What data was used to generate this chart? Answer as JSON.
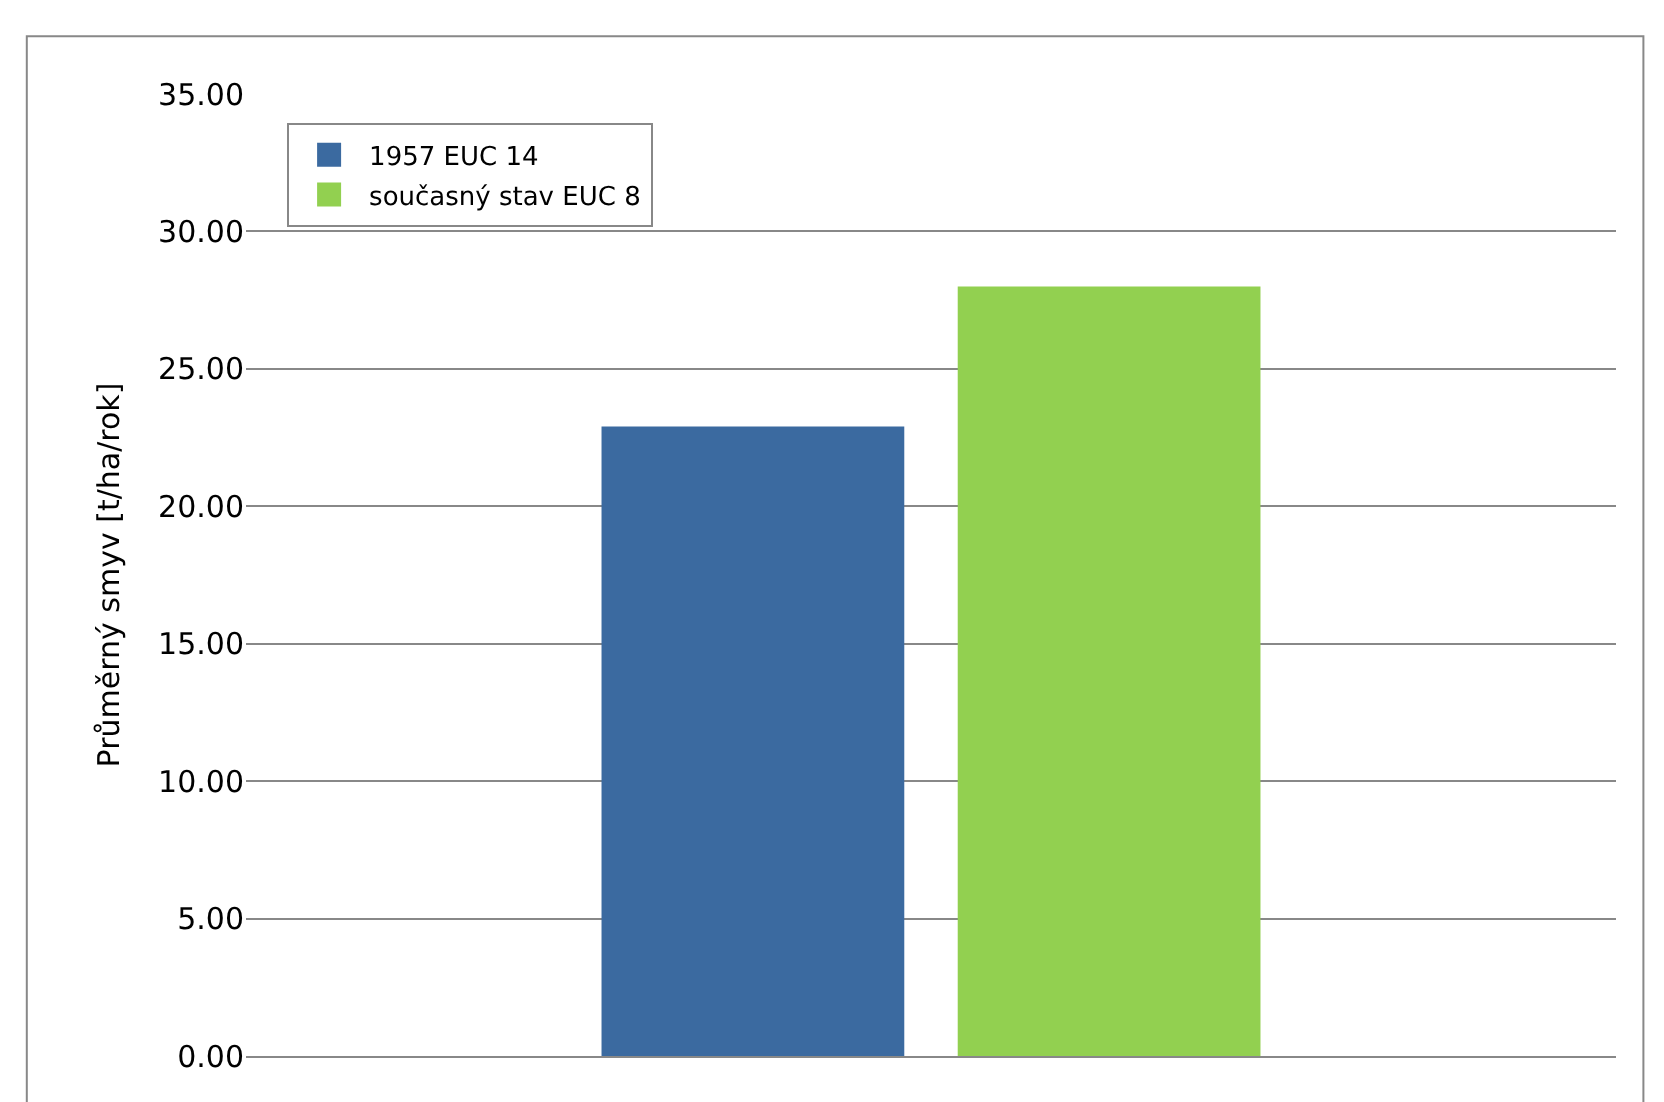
{
  "chart_data": {
    "type": "bar",
    "ylabel": "Průměrný smyv [t/ha/rok]",
    "categories": [
      null
    ],
    "series": [
      {
        "name": "1957 EUC 14",
        "color": "#3b6aa0",
        "values": [
          22.9
        ]
      },
      {
        "name": "současný stav EUC 8",
        "color": "#92d050",
        "values": [
          28.0
        ]
      }
    ],
    "ylim": [
      0,
      35
    ],
    "yticks": [
      {
        "value": 0,
        "label": "0.00"
      },
      {
        "value": 5,
        "label": "5.00"
      },
      {
        "value": 10,
        "label": "10.00"
      },
      {
        "value": 15,
        "label": "15.00"
      },
      {
        "value": 20,
        "label": "20.00"
      },
      {
        "value": 25,
        "label": "25.00"
      },
      {
        "value": 30,
        "label": "30.00"
      },
      {
        "value": 35,
        "label": "35.00"
      }
    ],
    "grid": "y",
    "legend": "top left",
    "tick_labels": "y"
  }
}
